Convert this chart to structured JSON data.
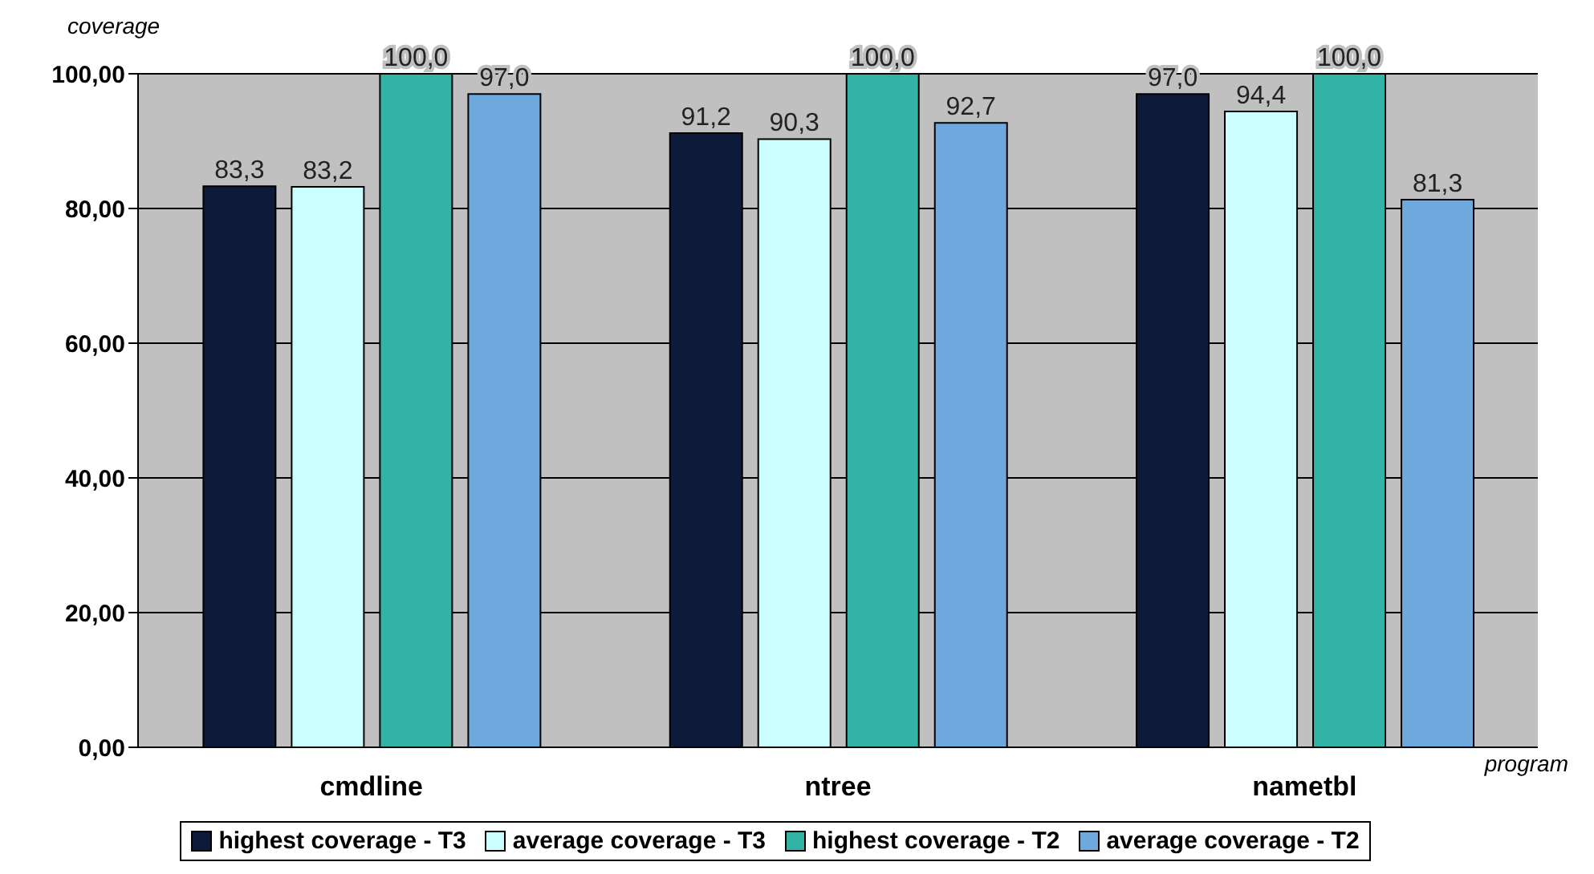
{
  "chart_data": {
    "type": "bar",
    "xlabel": "program",
    "ylabel": "coverage",
    "categories": [
      "cmdline",
      "ntree",
      "nametbl"
    ],
    "series": [
      {
        "name": "highest coverage - T3",
        "color": "#0d1a3a",
        "values": [
          83.3,
          91.2,
          97.0
        ],
        "value_labels": [
          "83,3",
          "91,2",
          "97,0"
        ]
      },
      {
        "name": "average coverage - T3",
        "color": "#ccffff",
        "values": [
          83.2,
          90.3,
          94.4
        ],
        "value_labels": [
          "83,2",
          "90,3",
          "94,4"
        ]
      },
      {
        "name": "highest coverage - T2",
        "color": "#33b3a6",
        "values": [
          100.0,
          100.0,
          100.0
        ],
        "value_labels": [
          "100,0",
          "100,0",
          "100,0"
        ]
      },
      {
        "name": "average coverage - T2",
        "color": "#6fa8dc",
        "values": [
          97.0,
          92.7,
          81.3
        ],
        "value_labels": [
          "97,0",
          "92,7",
          "81,3"
        ]
      }
    ],
    "ylim": [
      0,
      100
    ],
    "yticks": [
      {
        "value": 0,
        "label": "0,00"
      },
      {
        "value": 20,
        "label": "20,00"
      },
      {
        "value": 40,
        "label": "40,00"
      },
      {
        "value": 60,
        "label": "60,00"
      },
      {
        "value": 80,
        "label": "80,00"
      },
      {
        "value": 100,
        "label": "100,00"
      }
    ],
    "grid": "y",
    "legend": "bottom"
  }
}
